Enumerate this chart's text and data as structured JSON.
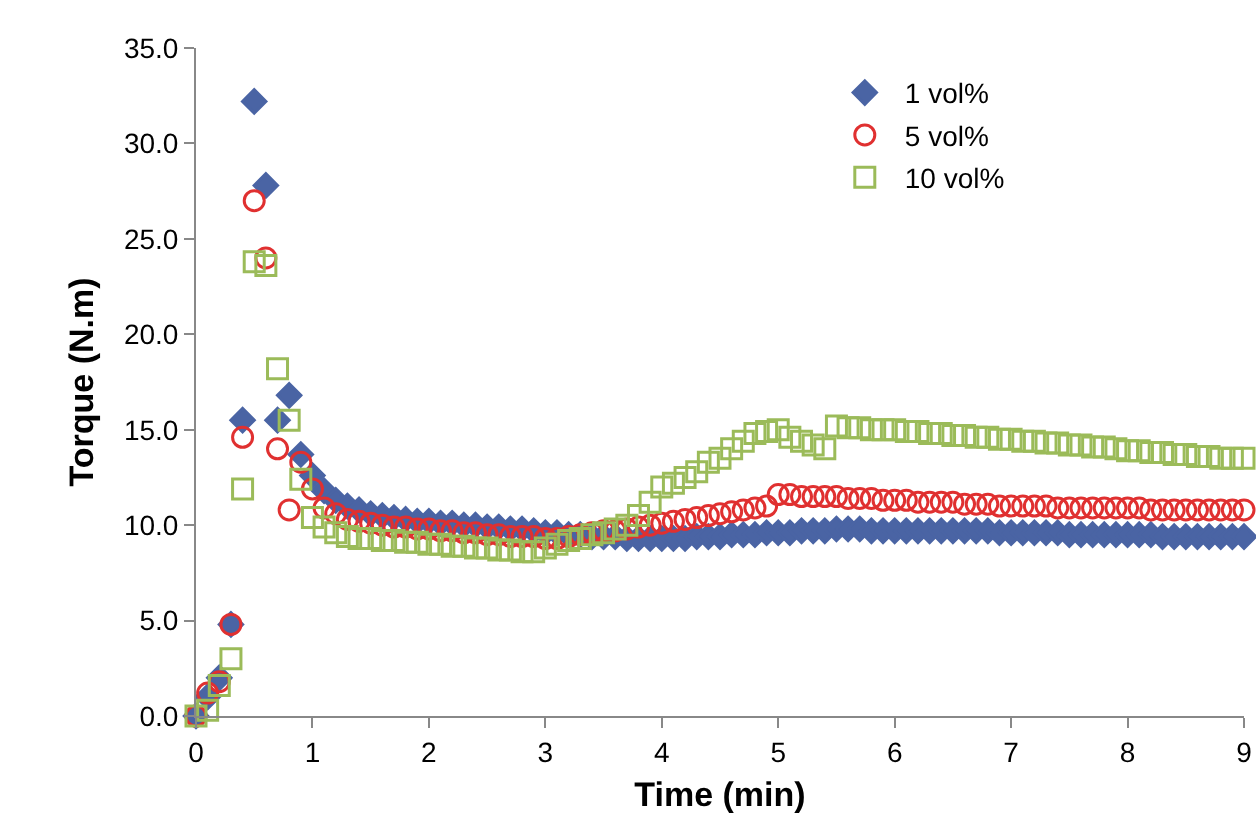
{
  "chart_data": {
    "type": "scatter",
    "xlabel": "Time (min)",
    "ylabel": "Torque (N.m)",
    "x": [
      0,
      0.1,
      0.2,
      0.3,
      0.4,
      0.5,
      0.6,
      0.7,
      0.8,
      0.9,
      1,
      1.1,
      1.2,
      1.3,
      1.4,
      1.5,
      1.6,
      1.7,
      1.8,
      1.9,
      2,
      2.1,
      2.2,
      2.3,
      2.4,
      2.5,
      2.6,
      2.7,
      2.8,
      2.9,
      3,
      3.1,
      3.2,
      3.3,
      3.4,
      3.5,
      3.6,
      3.7,
      3.8,
      3.9,
      4,
      4.1,
      4.2,
      4.3,
      4.4,
      4.5,
      4.6,
      4.7,
      4.8,
      4.9,
      5,
      5.1,
      5.2,
      5.3,
      5.4,
      5.5,
      5.6,
      5.7,
      5.8,
      5.9,
      6,
      6.1,
      6.2,
      6.3,
      6.4,
      6.5,
      6.6,
      6.7,
      6.8,
      6.9,
      7,
      7.1,
      7.2,
      7.3,
      7.4,
      7.5,
      7.6,
      7.7,
      7.8,
      7.9,
      8,
      8.1,
      8.2,
      8.3,
      8.4,
      8.5,
      8.6,
      8.7,
      8.8,
      8.9,
      9
    ],
    "series": [
      {
        "name": "1 vol%",
        "color": "#4a64a4",
        "marker": "diamond",
        "values": [
          0,
          1.0,
          2.0,
          4.8,
          15.5,
          32.2,
          27.8,
          15.5,
          16.8,
          13.7,
          12.6,
          11.8,
          11.3,
          11.0,
          10.8,
          10.6,
          10.5,
          10.4,
          10.3,
          10.2,
          10.2,
          10.1,
          10.1,
          10.0,
          10.0,
          9.9,
          9.9,
          9.8,
          9.8,
          9.7,
          9.6,
          9.6,
          9.5,
          9.5,
          9.4,
          9.4,
          9.4,
          9.3,
          9.3,
          9.3,
          9.3,
          9.3,
          9.3,
          9.4,
          9.4,
          9.4,
          9.5,
          9.5,
          9.5,
          9.6,
          9.6,
          9.6,
          9.7,
          9.7,
          9.7,
          9.8,
          9.8,
          9.8,
          9.7,
          9.7,
          9.7,
          9.7,
          9.7,
          9.7,
          9.7,
          9.7,
          9.7,
          9.7,
          9.7,
          9.6,
          9.6,
          9.6,
          9.6,
          9.6,
          9.6,
          9.5,
          9.5,
          9.5,
          9.5,
          9.5,
          9.5,
          9.5,
          9.5,
          9.4,
          9.4,
          9.4,
          9.4,
          9.4,
          9.4,
          9.4,
          9.4
        ]
      },
      {
        "name": "5 vol%",
        "color": "#e03030",
        "marker": "circle",
        "values": [
          0,
          1.2,
          1.8,
          4.8,
          14.6,
          27.0,
          24.0,
          14.0,
          10.8,
          13.3,
          11.9,
          10.9,
          10.6,
          10.3,
          10.2,
          10.1,
          10.0,
          9.9,
          9.9,
          9.8,
          9.8,
          9.7,
          9.7,
          9.6,
          9.6,
          9.5,
          9.5,
          9.4,
          9.4,
          9.4,
          9.3,
          9.3,
          9.4,
          9.5,
          9.6,
          9.7,
          9.7,
          9.8,
          9.9,
          10.0,
          10.1,
          10.2,
          10.3,
          10.4,
          10.5,
          10.6,
          10.7,
          10.8,
          10.9,
          11.0,
          11.6,
          11.6,
          11.5,
          11.5,
          11.5,
          11.5,
          11.4,
          11.4,
          11.4,
          11.3,
          11.3,
          11.3,
          11.2,
          11.2,
          11.2,
          11.2,
          11.1,
          11.1,
          11.1,
          11.0,
          11.0,
          11.0,
          11.0,
          11.0,
          10.9,
          10.9,
          10.9,
          10.9,
          10.9,
          10.9,
          10.9,
          10.9,
          10.8,
          10.8,
          10.8,
          10.8,
          10.8,
          10.8,
          10.8,
          10.8,
          10.8
        ]
      },
      {
        "name": "10 vol%",
        "color": "#9bbb59",
        "marker": "square",
        "values": [
          0,
          0.3,
          1.6,
          3.0,
          11.9,
          23.8,
          23.6,
          18.2,
          15.5,
          12.4,
          10.4,
          9.9,
          9.6,
          9.4,
          9.3,
          9.3,
          9.2,
          9.2,
          9.1,
          9.1,
          9.0,
          9.0,
          8.9,
          8.9,
          8.8,
          8.8,
          8.7,
          8.7,
          8.6,
          8.6,
          8.8,
          9.0,
          9.2,
          9.3,
          9.5,
          9.6,
          9.8,
          10.0,
          10.5,
          11.2,
          12.0,
          12.2,
          12.5,
          12.8,
          13.3,
          13.5,
          14.0,
          14.4,
          14.8,
          14.9,
          15.0,
          14.6,
          14.4,
          14.2,
          14.0,
          15.2,
          15.1,
          15.1,
          15.0,
          15.0,
          15.0,
          14.9,
          14.9,
          14.8,
          14.8,
          14.7,
          14.7,
          14.6,
          14.6,
          14.5,
          14.5,
          14.4,
          14.4,
          14.3,
          14.3,
          14.2,
          14.2,
          14.1,
          14.1,
          14.0,
          13.9,
          13.9,
          13.8,
          13.8,
          13.7,
          13.7,
          13.6,
          13.6,
          13.5,
          13.5,
          13.5
        ]
      }
    ],
    "xlim": [
      0,
      9
    ],
    "xticks": [
      0,
      1,
      2,
      3,
      4,
      5,
      6,
      7,
      8,
      9
    ],
    "ylim": [
      0,
      35
    ],
    "yticks": [
      {
        "value": 0,
        "label": "0.0"
      },
      {
        "value": 5,
        "label": "5.0"
      },
      {
        "value": 10,
        "label": "10.0"
      },
      {
        "value": 15,
        "label": "15.0"
      },
      {
        "value": 20,
        "label": "20.0"
      },
      {
        "value": 25,
        "label": "25.0"
      },
      {
        "value": 30,
        "label": "30.0"
      },
      {
        "value": 35,
        "label": "35.0"
      }
    ],
    "grid": false,
    "legend": "top right"
  }
}
